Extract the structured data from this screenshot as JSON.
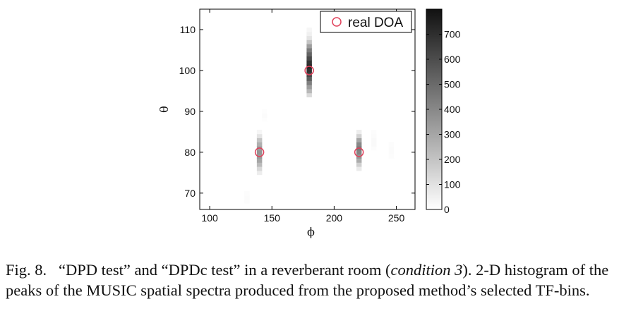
{
  "chart_data": {
    "type": "heatmap",
    "title": "",
    "xlabel": "ϕ",
    "ylabel": "θ",
    "xlim": [
      92,
      265
    ],
    "ylim": [
      66,
      115
    ],
    "x_ticks": [
      100,
      150,
      200,
      250
    ],
    "y_ticks": [
      70,
      80,
      90,
      100,
      110
    ],
    "colorbar": {
      "range": [
        0,
        800
      ],
      "ticks": [
        0,
        100,
        200,
        300,
        400,
        500,
        600,
        700
      ],
      "colormap": "gray-reversed"
    },
    "legend": {
      "entries": [
        {
          "label": "real DOA",
          "marker": "circle",
          "color": "#e0405a"
        }
      ],
      "placement": "top-right"
    },
    "real_doa": [
      {
        "phi": 140,
        "theta": 80
      },
      {
        "phi": 180,
        "theta": 100
      },
      {
        "phi": 220,
        "theta": 80
      }
    ],
    "peaks": [
      {
        "phi": 180,
        "theta_values": [
          94,
          95,
          96,
          97,
          98,
          99,
          100,
          101,
          102,
          103,
          104,
          105,
          106,
          107,
          108,
          109,
          110
        ],
        "counts": [
          120,
          240,
          330,
          430,
          540,
          620,
          700,
          740,
          690,
          610,
          520,
          440,
          330,
          200,
          90,
          50,
          30
        ]
      },
      {
        "phi": 140,
        "theta_values": [
          75,
          76,
          77,
          78,
          79,
          80,
          81,
          82,
          83,
          84,
          85
        ],
        "counts": [
          60,
          130,
          230,
          300,
          340,
          360,
          330,
          270,
          200,
          90,
          30
        ]
      },
      {
        "phi": 220,
        "theta_values": [
          76,
          77,
          78,
          79,
          80,
          81,
          82,
          83,
          84,
          85
        ],
        "counts": [
          70,
          160,
          280,
          360,
          420,
          450,
          400,
          300,
          150,
          60
        ]
      },
      {
        "phi": 232,
        "theta_values": [
          81,
          82,
          83,
          84,
          85
        ],
        "counts": [
          10,
          20,
          20,
          15,
          10
        ]
      },
      {
        "phi": 246,
        "theta_values": [
          79,
          80,
          81,
          82
        ],
        "counts": [
          10,
          15,
          15,
          10
        ]
      },
      {
        "phi": 144,
        "theta_values": [
          88,
          89,
          90
        ],
        "counts": [
          8,
          12,
          8
        ]
      },
      {
        "phi": 130,
        "theta_values": [
          68,
          69,
          70
        ],
        "counts": [
          10,
          15,
          10
        ]
      }
    ]
  },
  "caption": {
    "label": "Fig. 8.",
    "text_before": "“DPD test” and “DPDc test” in a reverberant room (",
    "condition": "condition 3",
    "text_after": "). 2-D histogram of the peaks of the MUSIC spatial spectra produced from the proposed method’s selected TF-bins."
  }
}
